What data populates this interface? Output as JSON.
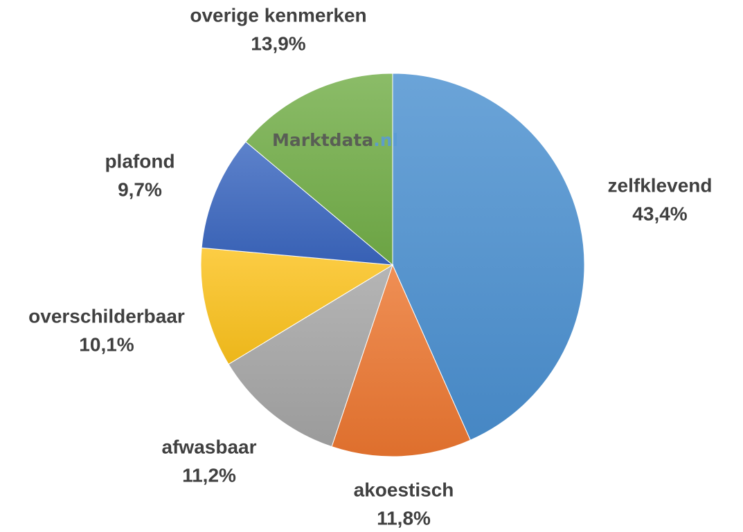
{
  "chart_data": {
    "type": "pie",
    "title": "",
    "slices": [
      {
        "label": "zelfklevend",
        "value": 43.4,
        "value_label": "43,4%",
        "color": "#4a90d0"
      },
      {
        "label": "akoestisch",
        "value": 11.8,
        "value_label": "11,8%",
        "color": "#ec7630"
      },
      {
        "label": "afwasbaar",
        "value": 11.2,
        "value_label": "11,2%",
        "color": "#a5a5a5"
      },
      {
        "label": "overschilderbaar",
        "value": 10.1,
        "value_label": "10,1%",
        "color": "#fbc21c"
      },
      {
        "label": "plafond",
        "value": 9.7,
        "value_label": "9,7%",
        "color": "#3a66c0"
      },
      {
        "label": "overige kenmerken",
        "value": 13.9,
        "value_label": "13,9%",
        "color": "#72ad47"
      }
    ]
  },
  "watermark": {
    "text": "Marktdata",
    "suffix": ".nl"
  }
}
